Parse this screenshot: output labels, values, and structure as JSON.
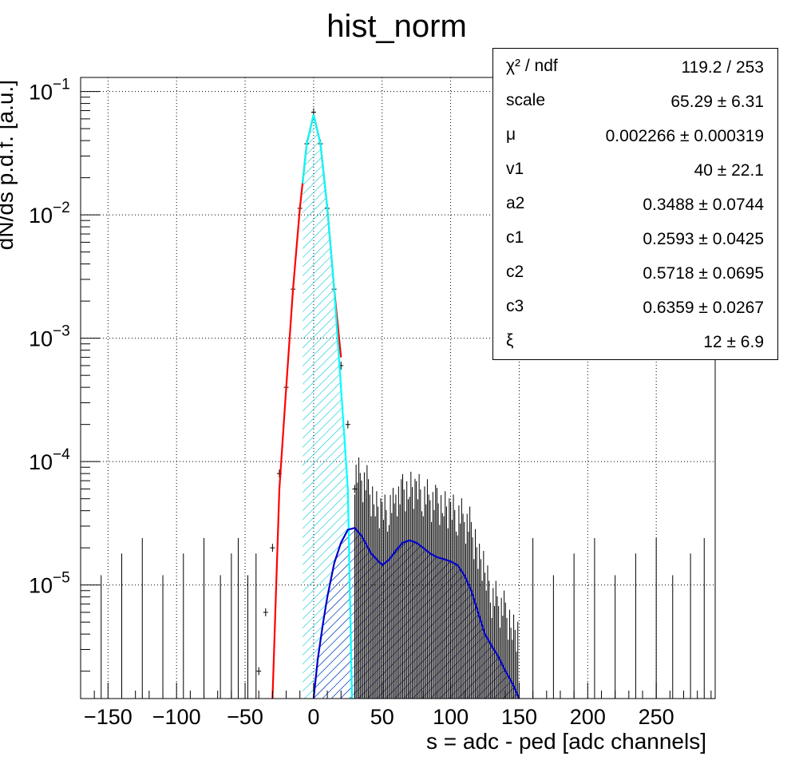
{
  "chart_data": {
    "type": "histogram",
    "title": "hist_norm",
    "xlabel": "s = adc - ped [adc channels]",
    "ylabel": "dN/ds p.d.f. [a.u.]",
    "xlim": [
      -170,
      293
    ],
    "ylim": [
      1.2e-06,
      0.13
    ],
    "y_scale": "log",
    "grid": true,
    "x_ticks": [
      -150,
      -100,
      -50,
      0,
      50,
      100,
      150,
      200,
      250
    ],
    "x_tick_labels": [
      "−150",
      "−100",
      "−50",
      "0",
      "50",
      "100",
      "150",
      "200",
      "250"
    ],
    "y_ticks": [
      {
        "value": 0.1,
        "base": "10",
        "exp": "−1"
      },
      {
        "value": 0.01,
        "base": "10",
        "exp": "−2"
      },
      {
        "value": 0.001,
        "base": "10",
        "exp": "−3"
      },
      {
        "value": 0.0001,
        "base": "10",
        "exp": "−4"
      },
      {
        "value": 1e-05,
        "base": "10",
        "exp": "−5"
      }
    ],
    "fit_params": {
      "scale": 65.29,
      "mu": 0.002266,
      "v1": 40,
      "a2": 0.3488,
      "c1": 0.2593,
      "c2": 0.5718,
      "c3": 0.6359,
      "xi": 12
    },
    "series": [
      {
        "id": "total_fit",
        "color": "#ff0000",
        "x": [
          -30,
          -25,
          -20,
          -15,
          -10,
          -5,
          0,
          5,
          10,
          15,
          20
        ],
        "y": [
          1.2e-06,
          6e-05,
          0.0004,
          0.0025,
          0.0113,
          0.0377,
          0.0647,
          0.0377,
          0.0113,
          0.0025,
          0.0007
        ]
      },
      {
        "id": "pedestal",
        "color": "#00ffff",
        "hatch": true,
        "x": [
          -8,
          -5,
          0,
          5,
          10,
          15,
          20,
          25,
          28
        ],
        "y": [
          0.018,
          0.0377,
          0.0647,
          0.0377,
          0.0113,
          0.0025,
          0.0004,
          6e-05,
          1.2e-06
        ]
      },
      {
        "id": "signal",
        "color": "#0000cc",
        "hatch": true,
        "x": [
          0,
          3,
          7,
          10,
          15,
          20,
          25,
          30,
          35,
          42,
          50,
          55,
          60,
          65,
          70,
          75,
          80,
          85,
          90,
          95,
          100,
          105,
          110,
          115,
          120,
          125,
          130,
          135,
          140,
          145,
          150
        ],
        "y": [
          1.2e-06,
          2.5e-06,
          5e-06,
          8e-06,
          1.5e-05,
          2.2e-05,
          2.8e-05,
          2.9e-05,
          2.5e-05,
          1.8e-05,
          1.45e-05,
          1.6e-05,
          1.9e-05,
          2.2e-05,
          2.3e-05,
          2.2e-05,
          2e-05,
          1.8e-05,
          1.68e-05,
          1.62e-05,
          1.55e-05,
          1.45e-05,
          1.2e-05,
          9e-06,
          6e-06,
          4e-06,
          3.2e-06,
          2.6e-06,
          2e-06,
          1.6e-06,
          1.2e-06
        ]
      }
    ],
    "data_points": {
      "peak_x": [
        -40,
        -35,
        -30,
        -25,
        -20,
        -15,
        -10,
        -5,
        0,
        5,
        10,
        15,
        20,
        25,
        30
      ],
      "peak_y": [
        2e-06,
        6e-06,
        2e-05,
        8e-05,
        0.0004,
        0.0025,
        0.0113,
        0.0377,
        0.068,
        0.0377,
        0.0113,
        0.0025,
        0.0006,
        0.0002,
        6e-05
      ],
      "tail_x": [
        30,
        35,
        40,
        45,
        50,
        55,
        60,
        65,
        70,
        75,
        80,
        85,
        90,
        95,
        100,
        105,
        110,
        115,
        120,
        125,
        130,
        135,
        140,
        145
      ],
      "tail_y": [
        3e-05,
        2.6e-05,
        2e-05,
        1.6e-05,
        1.5e-05,
        1.7e-05,
        2e-05,
        2.2e-05,
        2.3e-05,
        2.2e-05,
        2e-05,
        1.8e-05,
        1.7e-05,
        1.6e-05,
        1.5e-05,
        1.4e-05,
        1.2e-05,
        9e-06,
        6e-06,
        4e-06,
        3e-06,
        2.5e-06,
        2e-06,
        1.6e-06
      ]
    }
  },
  "stats": {
    "rows": [
      {
        "name": "χ² / ndf",
        "value": "119.2 / 253"
      },
      {
        "name": "scale",
        "value": "65.29 ± 6.31"
      },
      {
        "name": "μ",
        "value": "0.002266 ± 0.000319"
      },
      {
        "name": "v1",
        "value": "40 ± 22.1"
      },
      {
        "name": "a2",
        "value": "0.3488 ± 0.0744"
      },
      {
        "name": "c1",
        "value": "0.2593 ± 0.0425"
      },
      {
        "name": "c2",
        "value": "0.5718 ± 0.0695"
      },
      {
        "name": "c3",
        "value": "0.6359 ± 0.0267"
      },
      {
        "name": "ξ",
        "value": "12 ± 6.9"
      }
    ]
  }
}
